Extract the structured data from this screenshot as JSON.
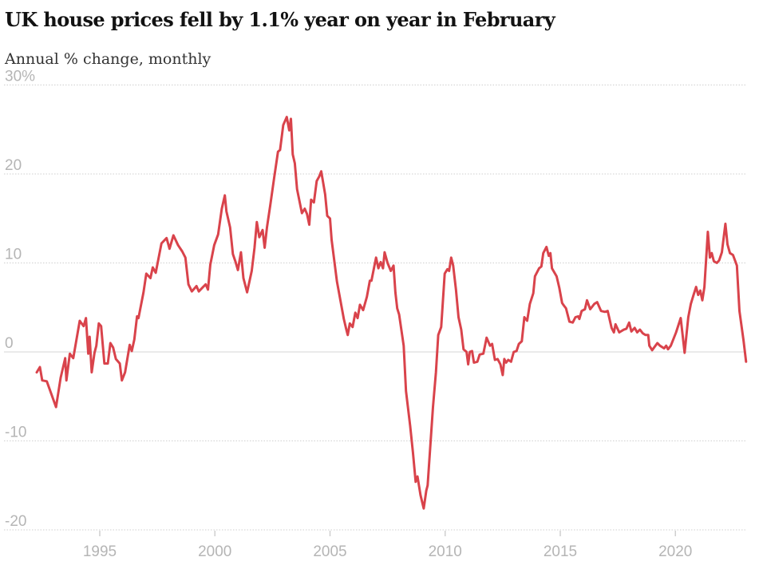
{
  "chart_data": {
    "type": "line",
    "title": "UK house prices fell by 1.1% year on year in February",
    "subtitle": "Annual % change, monthly",
    "xlabel": "",
    "ylabel": "",
    "xlim": [
      1992.2,
      2023.1
    ],
    "ylim": [
      -20,
      30
    ],
    "grid": true,
    "line_color": "#d9434b",
    "y_ticks": [
      {
        "value": 30,
        "label": "30%"
      },
      {
        "value": 20,
        "label": "20"
      },
      {
        "value": 10,
        "label": "10"
      },
      {
        "value": 0,
        "label": "0"
      },
      {
        "value": -10,
        "label": "-10"
      },
      {
        "value": -20,
        "label": "-20"
      }
    ],
    "x_ticks": [
      {
        "value": 1995,
        "label": "1995"
      },
      {
        "value": 2000,
        "label": "2000"
      },
      {
        "value": 2005,
        "label": "2005"
      },
      {
        "value": 2010,
        "label": "2010"
      },
      {
        "value": 2015,
        "label": "2015"
      },
      {
        "value": 2020,
        "label": "2020"
      }
    ],
    "series": [
      {
        "name": "Annual % change",
        "x": [
          1992.26,
          1992.4,
          1992.5,
          1992.7,
          1993.1,
          1993.3,
          1993.5,
          1993.55,
          1993.7,
          1993.85,
          1994.13,
          1994.3,
          1994.4,
          1994.5,
          1994.56,
          1994.65,
          1994.77,
          1994.85,
          1994.96,
          1995.06,
          1995.2,
          1995.35,
          1995.46,
          1995.58,
          1995.7,
          1995.87,
          1995.96,
          1996.1,
          1996.3,
          1996.39,
          1996.5,
          1996.62,
          1996.68,
          1996.9,
          1997.02,
          1997.2,
          1997.3,
          1997.43,
          1997.68,
          1997.9,
          1998.03,
          1998.2,
          1998.4,
          1998.58,
          1998.72,
          1998.85,
          1999.0,
          1999.2,
          1999.3,
          1999.6,
          1999.7,
          1999.8,
          1999.97,
          2000.14,
          2000.3,
          2000.43,
          2000.5,
          2000.66,
          2000.78,
          2000.9,
          2001.0,
          2001.13,
          2001.24,
          2001.4,
          2001.6,
          2001.72,
          2001.82,
          2001.93,
          2002.07,
          2002.16,
          2002.26,
          2002.4,
          2002.57,
          2002.74,
          2002.83,
          2002.97,
          2003.12,
          2003.23,
          2003.3,
          2003.38,
          2003.47,
          2003.57,
          2003.78,
          2003.9,
          2004.0,
          2004.1,
          2004.18,
          2004.3,
          2004.42,
          2004.53,
          2004.62,
          2004.79,
          2004.88,
          2005.0,
          2005.07,
          2005.3,
          2005.6,
          2005.7,
          2005.77,
          2005.86,
          2005.98,
          2006.1,
          2006.2,
          2006.3,
          2006.44,
          2006.6,
          2006.73,
          2006.8,
          2007.0,
          2007.1,
          2007.2,
          2007.3,
          2007.37,
          2007.5,
          2007.64,
          2007.76,
          2007.84,
          2007.92,
          2008.0,
          2008.2,
          2008.3,
          2008.48,
          2008.6,
          2008.72,
          2008.8,
          2008.93,
          2009.07,
          2009.18,
          2009.24,
          2009.36,
          2009.47,
          2009.6,
          2009.7,
          2009.83,
          2009.98,
          2010.1,
          2010.17,
          2010.26,
          2010.35,
          2010.47,
          2010.58,
          2010.7,
          2010.8,
          2010.93,
          2011.0,
          2011.07,
          2011.17,
          2011.25,
          2011.4,
          2011.5,
          2011.66,
          2011.8,
          2011.95,
          2012.04,
          2012.16,
          2012.28,
          2012.4,
          2012.5,
          2012.57,
          2012.65,
          2012.74,
          2012.86,
          2012.98,
          2013.1,
          2013.2,
          2013.33,
          2013.44,
          2013.56,
          2013.68,
          2013.83,
          2013.9,
          2014.08,
          2014.18,
          2014.26,
          2014.4,
          2014.5,
          2014.57,
          2014.64,
          2014.84,
          2014.96,
          2015.08,
          2015.16,
          2015.25,
          2015.4,
          2015.54,
          2015.66,
          2015.78,
          2015.83,
          2015.93,
          2016.07,
          2016.16,
          2016.3,
          2016.48,
          2016.6,
          2016.77,
          2016.94,
          2017.06,
          2017.23,
          2017.33,
          2017.4,
          2017.56,
          2017.76,
          2017.87,
          2017.99,
          2018.09,
          2018.23,
          2018.34,
          2018.46,
          2018.58,
          2018.7,
          2018.82,
          2018.87,
          2018.99,
          2019.22,
          2019.33,
          2019.51,
          2019.6,
          2019.68,
          2019.8,
          2020.03,
          2020.23,
          2020.4,
          2020.56,
          2020.67,
          2020.79,
          2020.9,
          2020.99,
          2021.08,
          2021.17,
          2021.26,
          2021.41,
          2021.5,
          2021.58,
          2021.67,
          2021.8,
          2021.9,
          2022.02,
          2022.17,
          2022.26,
          2022.37,
          2022.5,
          2022.67,
          2022.78,
          2022.96,
          2023.07
        ],
        "y": [
          -2.3,
          -1.7,
          -3.2,
          -3.3,
          -6.2,
          -2.9,
          -0.7,
          -3.2,
          -0.2,
          -0.7,
          3.5,
          2.9,
          3.8,
          -0.2,
          1.7,
          -2.3,
          -0.1,
          0.7,
          3.2,
          2.9,
          -1.3,
          -1.3,
          1.0,
          0.5,
          -0.8,
          -1.3,
          -3.2,
          -2.3,
          0.8,
          0.1,
          1.4,
          4.0,
          3.8,
          6.7,
          8.8,
          8.3,
          9.5,
          8.9,
          12.2,
          12.8,
          11.6,
          13.1,
          12.0,
          11.3,
          10.6,
          7.6,
          6.8,
          7.4,
          6.8,
          7.6,
          7.0,
          9.8,
          12.0,
          13.2,
          16.1,
          17.6,
          15.8,
          14.0,
          11.0,
          10.1,
          9.2,
          11.2,
          8.3,
          6.7,
          9.1,
          11.7,
          14.6,
          12.9,
          13.7,
          11.7,
          14.0,
          16.4,
          19.5,
          22.5,
          22.7,
          25.5,
          26.4,
          24.9,
          26.2,
          22.2,
          21.2,
          18.3,
          15.6,
          16.1,
          15.5,
          14.3,
          17.1,
          16.8,
          19.2,
          19.7,
          20.3,
          17.7,
          15.3,
          15.0,
          12.6,
          7.9,
          3.7,
          2.6,
          1.9,
          3.2,
          2.8,
          4.4,
          3.8,
          5.3,
          4.7,
          6.2,
          8.0,
          8.0,
          10.6,
          9.4,
          10.1,
          9.4,
          11.2,
          10.0,
          9.1,
          9.7,
          6.7,
          4.9,
          4.2,
          0.7,
          -4.4,
          -8.3,
          -11.3,
          -14.6,
          -14.0,
          -16.1,
          -17.6,
          -15.6,
          -15.0,
          -10.4,
          -6.2,
          -2.3,
          1.9,
          2.8,
          8.8,
          9.3,
          9.1,
          10.6,
          9.7,
          7.0,
          3.9,
          2.5,
          0.3,
          0,
          -1.4,
          0,
          0.1,
          -1.2,
          -1.1,
          -0.3,
          -0.2,
          1.6,
          0.7,
          0.9,
          -0.9,
          -0.8,
          -1.4,
          -2.6,
          -0.8,
          -1.2,
          -0.9,
          -1.1,
          0,
          0.1,
          0.9,
          1.2,
          3.9,
          3.5,
          5.4,
          6.6,
          8.5,
          9.4,
          9.6,
          11.1,
          11.8,
          10.8,
          11.1,
          9.4,
          8.5,
          7.2,
          5.5,
          5.2,
          4.9,
          3.4,
          3.3,
          3.9,
          4.0,
          3.7,
          4.6,
          4.8,
          5.8,
          4.8,
          5.4,
          5.6,
          4.6,
          4.5,
          4.6,
          2.7,
          2.2,
          3.1,
          2.2,
          2.5,
          2.6,
          3.3,
          2.3,
          2.7,
          2.2,
          2.5,
          2.1,
          1.9,
          1.9,
          0.7,
          0.2,
          1.0,
          0.7,
          0.4,
          0.7,
          0.3,
          0.7,
          2.2,
          3.8,
          -0.1,
          3.9,
          5.4,
          6.4,
          7.3,
          6.4,
          6.9,
          5.8,
          7.3,
          13.5,
          10.6,
          11.1,
          10.2,
          10.0,
          10.3,
          11.2,
          14.4,
          12.1,
          11.1,
          10.9,
          9.7,
          4.6,
          1.3,
          -1.1
        ]
      }
    ]
  }
}
